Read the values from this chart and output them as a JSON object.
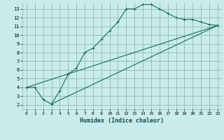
{
  "title": "",
  "xlabel": "Humidex (Indice chaleur)",
  "bg_color": "#c8ecec",
  "grid_color": "#90b8b8",
  "line_color": "#1a6b5a",
  "xlim": [
    -0.5,
    23.5
  ],
  "ylim": [
    1.5,
    13.7
  ],
  "xticks": [
    0,
    1,
    2,
    3,
    4,
    5,
    6,
    7,
    8,
    9,
    10,
    11,
    12,
    13,
    14,
    15,
    16,
    17,
    18,
    19,
    20,
    21,
    22,
    23
  ],
  "yticks": [
    2,
    3,
    4,
    5,
    6,
    7,
    8,
    9,
    10,
    11,
    12,
    13
  ],
  "line1_x": [
    0,
    1,
    2,
    3,
    4,
    5,
    6,
    7,
    8,
    9,
    10,
    11,
    12,
    13,
    14,
    15,
    16,
    17,
    18,
    19,
    20,
    21,
    22,
    23
  ],
  "line1_y": [
    4,
    4,
    2.6,
    2.1,
    3.6,
    5.5,
    6.2,
    8.0,
    8.5,
    9.5,
    10.5,
    11.5,
    13.0,
    13.0,
    13.5,
    13.5,
    13.0,
    12.5,
    12.0,
    11.8,
    11.8,
    11.5,
    11.2,
    11.1
  ],
  "line2_x": [
    0,
    23
  ],
  "line2_y": [
    4.0,
    11.1
  ],
  "line3_x": [
    3,
    23
  ],
  "line3_y": [
    2.1,
    11.1
  ]
}
